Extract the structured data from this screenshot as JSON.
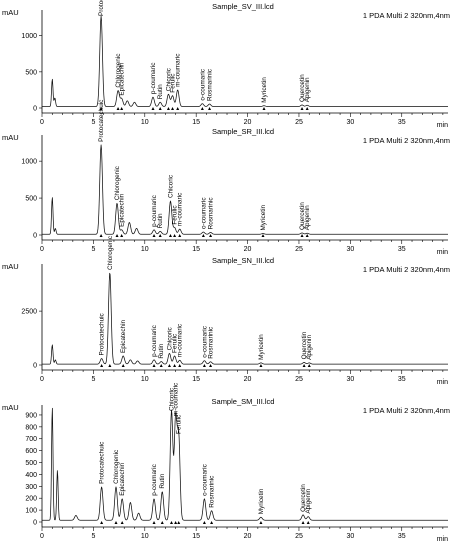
{
  "chart_data": [
    {
      "type": "line",
      "title": "Sample_SV_III.lcd",
      "detector": "1 PDA Multi 2 320nm,4nm",
      "ylabel": "mAU",
      "xlabel": "min",
      "xlim": [
        0,
        39.5
      ],
      "ylim": [
        0,
        1300
      ],
      "xticks": [
        0,
        5,
        10,
        15,
        20,
        25,
        30,
        35
      ],
      "yticks": [
        0,
        500,
        1000
      ],
      "baseline": 20,
      "peaks": [
        {
          "x": 1.0,
          "y": 380
        },
        {
          "x": 1.25,
          "y": 120
        },
        {
          "x": 5.75,
          "y": 1250,
          "label": "Protocatechuic"
        },
        {
          "x": 7.4,
          "y": 220,
          "label": "Chlorogenic"
        },
        {
          "x": 7.75,
          "y": 110,
          "label": "Epicatechin"
        },
        {
          "x": 8.3,
          "y": 80
        },
        {
          "x": 9.0,
          "y": 60
        },
        {
          "x": 10.8,
          "y": 130,
          "label": "p-coumaric"
        },
        {
          "x": 11.5,
          "y": 60,
          "label": "Rutin"
        },
        {
          "x": 12.3,
          "y": 170,
          "label": "Chicoric"
        },
        {
          "x": 12.7,
          "y": 150,
          "label": "Ferulic"
        },
        {
          "x": 13.2,
          "y": 230,
          "label": "m-coumaric"
        },
        {
          "x": 15.6,
          "y": 40,
          "label": "o-coumaric"
        },
        {
          "x": 16.3,
          "y": 35,
          "label": "Rosmarinic"
        },
        {
          "x": 21.6,
          "y": 12,
          "label": "Myricetin"
        },
        {
          "x": 25.3,
          "y": 22,
          "label": "Quercetin"
        },
        {
          "x": 25.8,
          "y": 18,
          "label": "Apigenin"
        }
      ]
    },
    {
      "type": "line",
      "title": "Sample_SR_III.lcd",
      "detector": "1 PDA Multi 2 320nm,4nm",
      "ylabel": "mAU",
      "xlabel": "min",
      "xlim": [
        0,
        39.5
      ],
      "ylim": [
        0,
        1300
      ],
      "xticks": [
        0,
        5,
        10,
        15,
        20,
        25,
        30,
        35
      ],
      "yticks": [
        0,
        500,
        1000
      ],
      "baseline": 10,
      "peaks": [
        {
          "x": 1.0,
          "y": 500
        },
        {
          "x": 1.3,
          "y": 80
        },
        {
          "x": 5.75,
          "y": 1210,
          "label": "Protocatechuic"
        },
        {
          "x": 7.3,
          "y": 420,
          "label": "Chlorogenic"
        },
        {
          "x": 7.75,
          "y": 60,
          "label": "Epicatechin"
        },
        {
          "x": 8.5,
          "y": 160
        },
        {
          "x": 9.2,
          "y": 80
        },
        {
          "x": 10.9,
          "y": 60,
          "label": "p-coumaric"
        },
        {
          "x": 11.5,
          "y": 40,
          "label": "Rutin"
        },
        {
          "x": 12.5,
          "y": 450,
          "label": "Chicoric"
        },
        {
          "x": 12.9,
          "y": 90,
          "label": "Ferulic"
        },
        {
          "x": 13.4,
          "y": 70,
          "label": "m-coumaric"
        },
        {
          "x": 15.7,
          "y": 30,
          "label": "o-coumaric"
        },
        {
          "x": 16.4,
          "y": 25,
          "label": "Rosmarinic"
        },
        {
          "x": 21.5,
          "y": 10,
          "label": "Myricetin"
        },
        {
          "x": 25.3,
          "y": 18,
          "label": "Quercetin"
        },
        {
          "x": 25.8,
          "y": 14,
          "label": "Apigenin"
        }
      ]
    },
    {
      "type": "line",
      "title": "Sample_SN_III.lcd",
      "detector": "1 PDA Multi 2 320nm,4nm",
      "ylabel": "mAU",
      "xlabel": "min",
      "xlim": [
        0,
        39.5
      ],
      "ylim": [
        0,
        4500
      ],
      "xticks": [
        0,
        5,
        10,
        15,
        20,
        25,
        30,
        35
      ],
      "yticks": [
        0,
        2500
      ],
      "baseline": 40,
      "peaks": [
        {
          "x": 1.0,
          "y": 900
        },
        {
          "x": 1.3,
          "y": 200
        },
        {
          "x": 5.8,
          "y": 260,
          "label": "Protocatechuic"
        },
        {
          "x": 6.6,
          "y": 4250,
          "label": "Chlorogenic"
        },
        {
          "x": 7.9,
          "y": 380,
          "label": "Epicatechin"
        },
        {
          "x": 8.6,
          "y": 200
        },
        {
          "x": 9.3,
          "y": 150
        },
        {
          "x": 10.9,
          "y": 200,
          "label": "p-coumaric"
        },
        {
          "x": 11.6,
          "y": 120,
          "label": "Rutin"
        },
        {
          "x": 12.4,
          "y": 500,
          "label": "Chicoric"
        },
        {
          "x": 12.9,
          "y": 380,
          "label": "Ferulic"
        },
        {
          "x": 13.4,
          "y": 180,
          "label": "m-coumaric"
        },
        {
          "x": 15.8,
          "y": 160,
          "label": "o-coumaric"
        },
        {
          "x": 16.4,
          "y": 110,
          "label": "Rosmarinic"
        },
        {
          "x": 21.3,
          "y": 60,
          "label": "Myricetin"
        },
        {
          "x": 25.5,
          "y": 80,
          "label": "Quercetin"
        },
        {
          "x": 26.0,
          "y": 60,
          "label": "Apigenin"
        }
      ]
    },
    {
      "type": "line",
      "title": "Sample_SM_III.lcd",
      "detector": "1 PDA Multi 2 320nm,4nm",
      "ylabel": "mAU",
      "xlabel": "min",
      "xlim": [
        0,
        39.5
      ],
      "ylim": [
        0,
        950
      ],
      "xticks": [
        0,
        5,
        10,
        15,
        20,
        25,
        30,
        35
      ],
      "yticks": [
        0,
        100,
        200,
        300,
        400,
        500,
        600,
        700,
        800,
        900
      ],
      "baseline": 15,
      "peaks": [
        {
          "x": 1.0,
          "y": 950
        },
        {
          "x": 1.5,
          "y": 420
        },
        {
          "x": 3.3,
          "y": 40
        },
        {
          "x": 5.8,
          "y": 280,
          "label": "Protocatechuic"
        },
        {
          "x": 7.2,
          "y": 280,
          "label": "Chlorogenic"
        },
        {
          "x": 7.8,
          "y": 180,
          "label": "Epicatechin"
        },
        {
          "x": 8.6,
          "y": 150
        },
        {
          "x": 9.4,
          "y": 60
        },
        {
          "x": 10.9,
          "y": 180,
          "label": "p-coumaric"
        },
        {
          "x": 11.7,
          "y": 240,
          "label": "Rutin"
        },
        {
          "x": 12.6,
          "y": 920,
          "label": "Chicoric"
        },
        {
          "x": 13.0,
          "y": 850,
          "label": "m-coumaric"
        },
        {
          "x": 13.3,
          "y": 700,
          "label": "Ferulic"
        },
        {
          "x": 15.8,
          "y": 180,
          "label": "o-coumaric"
        },
        {
          "x": 16.5,
          "y": 80,
          "label": "Rosmarinic"
        },
        {
          "x": 21.3,
          "y": 25,
          "label": "Myricetin"
        },
        {
          "x": 25.4,
          "y": 45,
          "label": "Quercetin"
        },
        {
          "x": 25.9,
          "y": 30,
          "label": "Apigenin"
        }
      ]
    }
  ]
}
